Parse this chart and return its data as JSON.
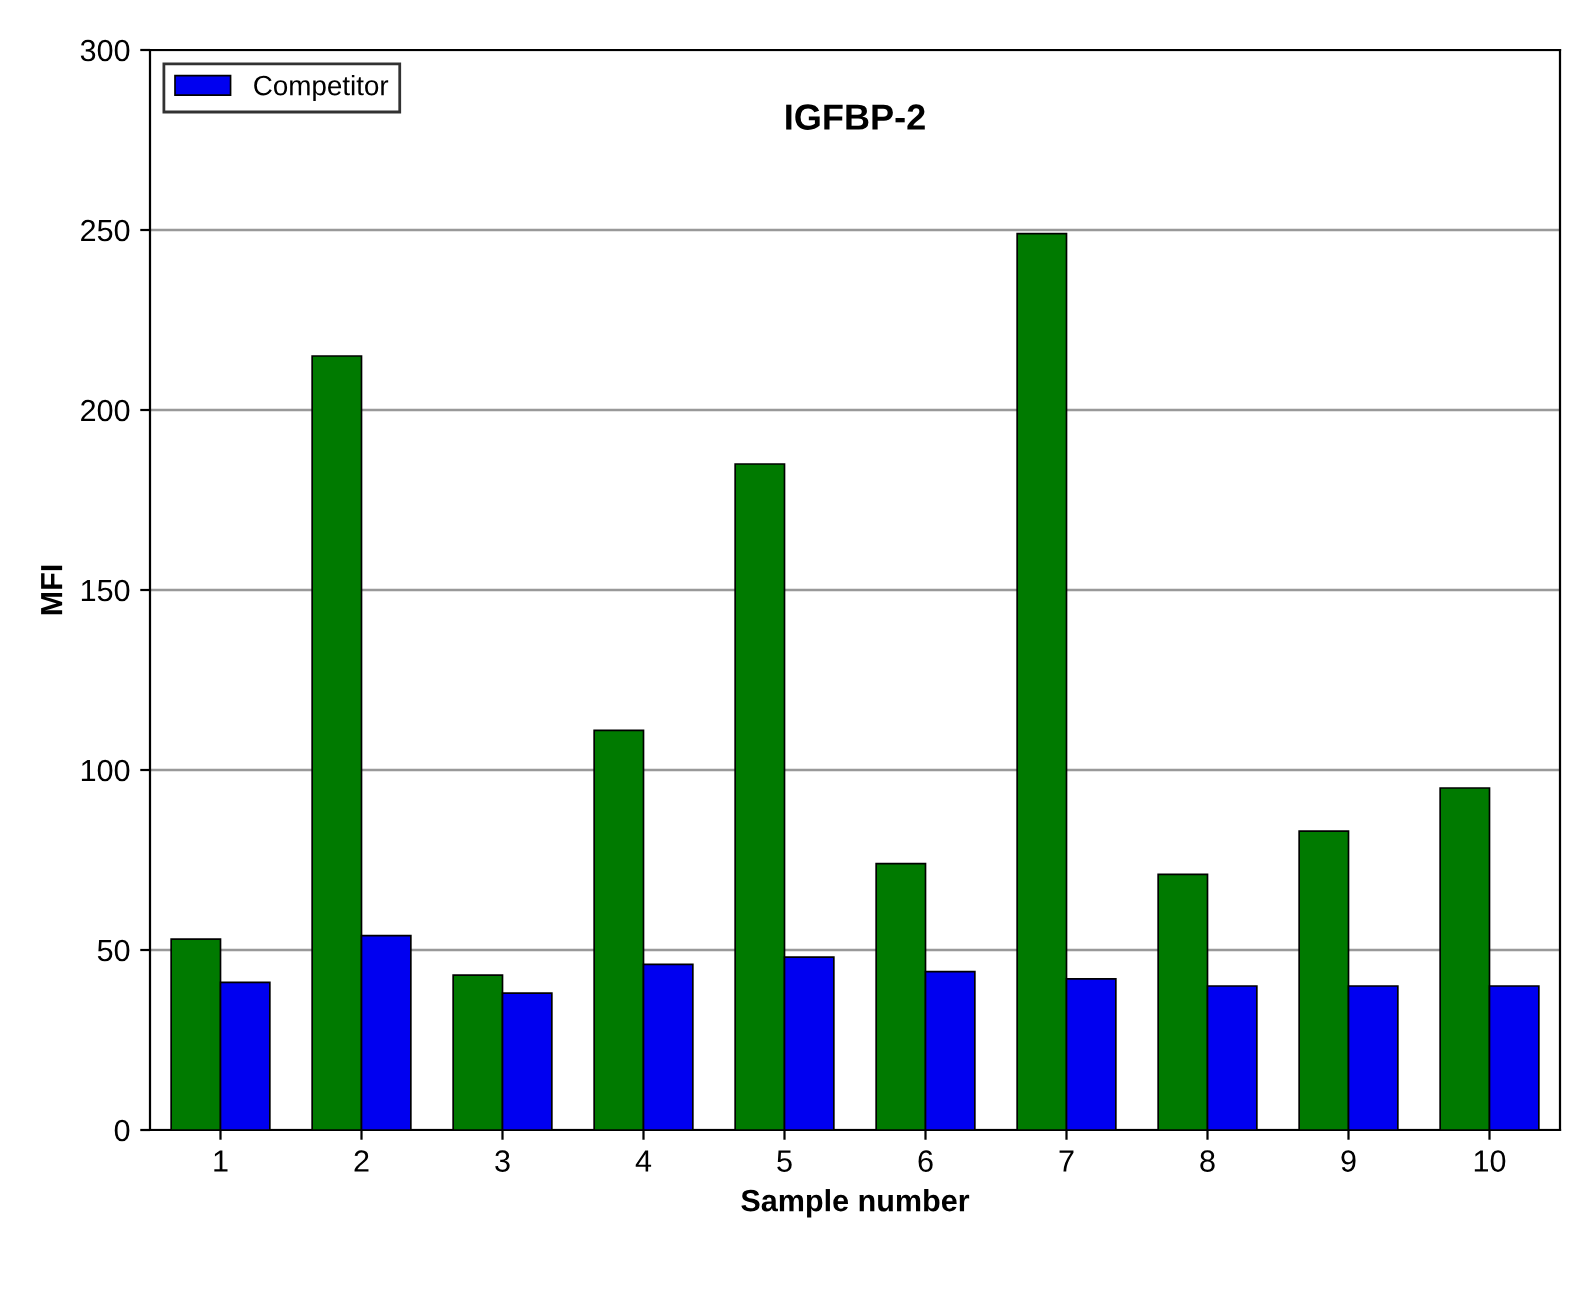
{
  "chart_data": {
    "type": "bar",
    "title": "IGFBP-2",
    "xlabel": "Sample number",
    "ylabel": "MFI",
    "categories": [
      "1",
      "2",
      "3",
      "4",
      "5",
      "6",
      "7",
      "8",
      "9",
      "10"
    ],
    "series": [
      {
        "color": "#007a00",
        "values": [
          53,
          215,
          43,
          111,
          185,
          74,
          249,
          71,
          83,
          95
        ]
      },
      {
        "name": "Competitor",
        "color": "#0000f0",
        "values": [
          41,
          54,
          38,
          46,
          48,
          44,
          42,
          40,
          40,
          40
        ]
      }
    ],
    "ylim": [
      0,
      300
    ],
    "yticks": [
      0,
      50,
      100,
      150,
      200,
      250,
      300
    ],
    "grid": "y",
    "legend": "top left"
  }
}
